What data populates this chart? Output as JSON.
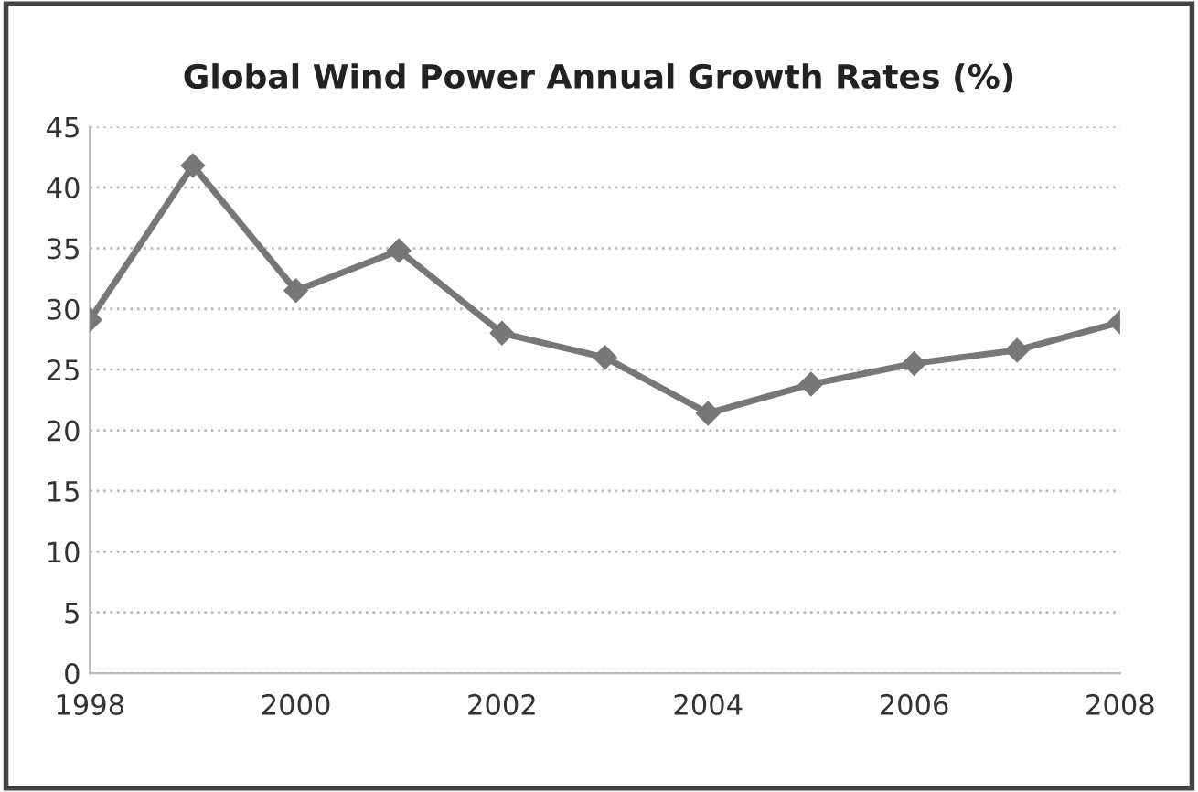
{
  "chart_data": {
    "type": "line",
    "title": "Global Wind Power Annual Growth Rates (%)",
    "x": [
      1998,
      1999,
      2000,
      2001,
      2002,
      2003,
      2004,
      2005,
      2006,
      2007,
      2008
    ],
    "series": [
      {
        "color": "#777777",
        "values": [
          29.1,
          41.8,
          31.5,
          34.8,
          28.0,
          26.0,
          21.4,
          23.8,
          25.5,
          26.6,
          28.9
        ]
      }
    ],
    "xlim": [
      1998,
      2008
    ],
    "xticks": [
      1998,
      2000,
      2002,
      2004,
      2006,
      2008
    ],
    "ylim": [
      0,
      45
    ],
    "yticks": [
      0,
      5,
      10,
      15,
      20,
      25,
      30,
      35,
      40,
      45
    ],
    "grid": "y",
    "marker": "diamond",
    "line_style": "solid"
  }
}
